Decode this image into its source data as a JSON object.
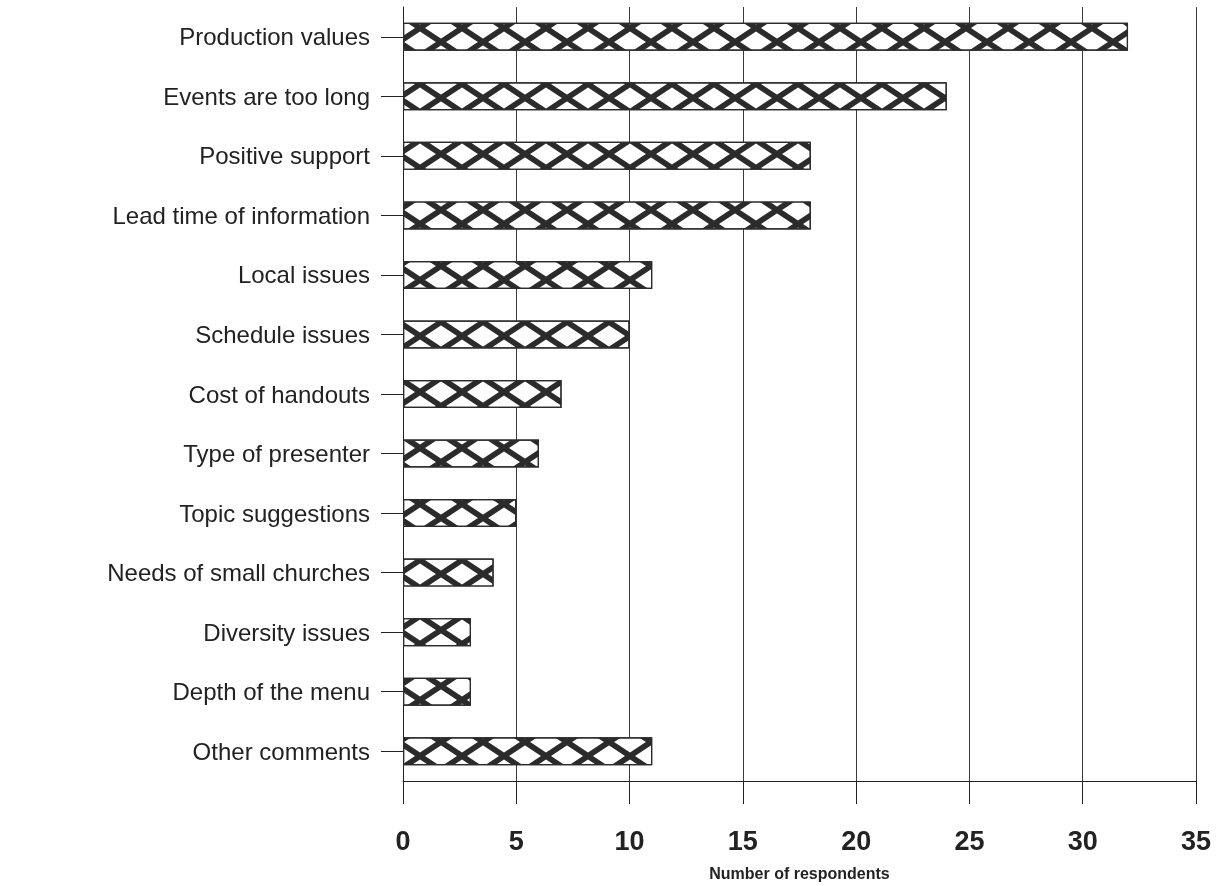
{
  "chart_data": {
    "type": "bar",
    "orientation": "horizontal",
    "categories": [
      "Production values",
      "Events are too long",
      "Positive support",
      "Lead time of information",
      "Local issues",
      "Schedule issues",
      "Cost of handouts",
      "Type of presenter",
      "Topic suggestions",
      "Needs of small churches",
      "Diversity issues",
      "Depth of the menu",
      "Other comments"
    ],
    "values": [
      32,
      24,
      18,
      18,
      11,
      10,
      7,
      6,
      5,
      4,
      3,
      3,
      11
    ],
    "color": "#2b2b2b",
    "xlabel": "Number of respondents",
    "xlim": [
      0,
      35
    ],
    "xticks": [
      0,
      5,
      10,
      15,
      20,
      25,
      30,
      35
    ],
    "grid": "x"
  }
}
